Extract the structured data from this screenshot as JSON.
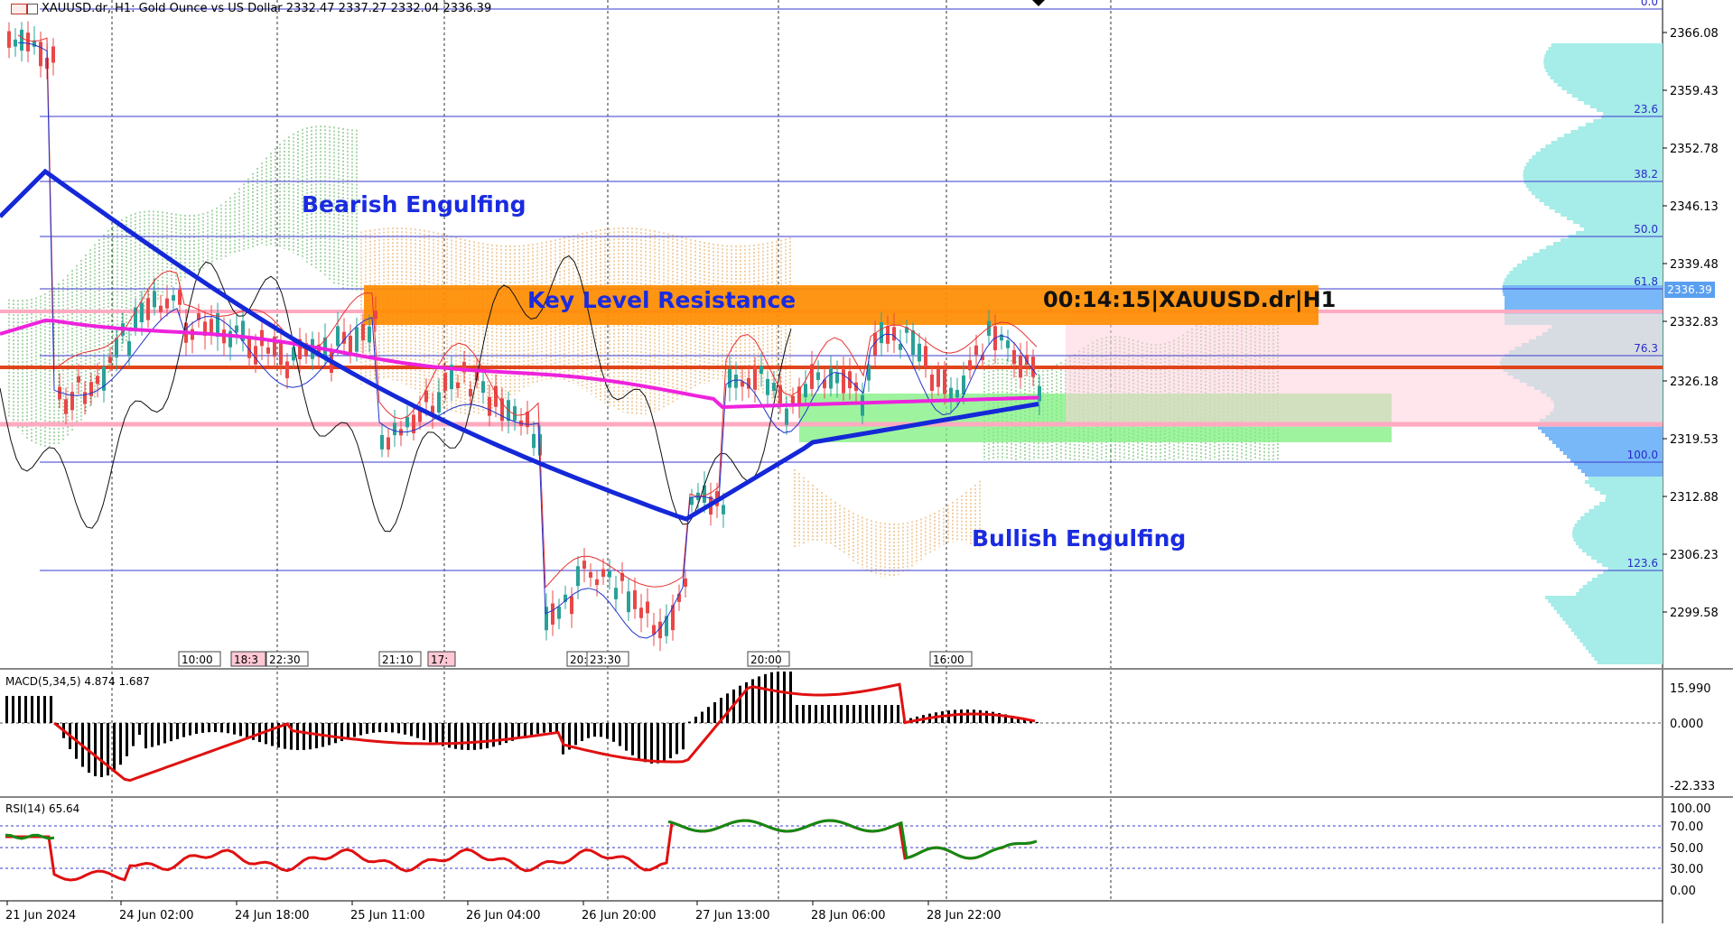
{
  "header": {
    "symbol_line": "XAUUSD.dr, H1:  Gold Ounce vs US Dollar   2332.47  2337.27  2332.04  2336.39"
  },
  "annotations": {
    "bearish": "Bearish Engulfing",
    "bullish": "Bullish Engulfing",
    "key_level": "Key Level Resistance",
    "timer": "00:14:15|XAUUSD.dr|H1"
  },
  "price_axis": {
    "labels": [
      "2366.08",
      "2359.43",
      "2352.78",
      "2346.13",
      "2339.48",
      "2332.83",
      "2326.18",
      "2319.53",
      "2312.88",
      "2306.23",
      "2299.58"
    ],
    "current_price": "2336.39"
  },
  "fibonacci": {
    "levels": [
      "0.0",
      "23.6",
      "38.2",
      "50.0",
      "61.8",
      "76.3",
      "100.0",
      "123.6"
    ]
  },
  "time_axis": {
    "labels": [
      "21 Jun 2024",
      "24 Jun 02:00",
      "24 Jun 18:00",
      "25 Jun 11:00",
      "26 Jun 04:00",
      "26 Jun 20:00",
      "27 Jun 13:00",
      "28 Jun 06:00",
      "28 Jun 22:00"
    ]
  },
  "session_labels": [
    "10:00",
    "18:3",
    "22:30",
    "21:10",
    "17:",
    "20:",
    "23:30",
    "20:00",
    "16:00"
  ],
  "macd": {
    "label": "MACD(5,34,5) 4.874 1.687",
    "axis": [
      "15.990",
      "0.000",
      "-22.333"
    ]
  },
  "rsi": {
    "label": "RSI(14) 65.64",
    "axis": [
      "100.00",
      "70.00",
      "50.00",
      "30.00",
      "0.00"
    ]
  },
  "colors": {
    "bull_candle": "#2aa198",
    "bear_candle": "#e84848",
    "ma_blue": "#1428d8",
    "ma_magenta": "#ee22dd",
    "resistance_band": "#ff8c00",
    "fib_line": "#3a3ad0",
    "support_zone": "#7ef07e",
    "rsi_red": "#e01010",
    "rsi_green": "#138a13"
  }
}
